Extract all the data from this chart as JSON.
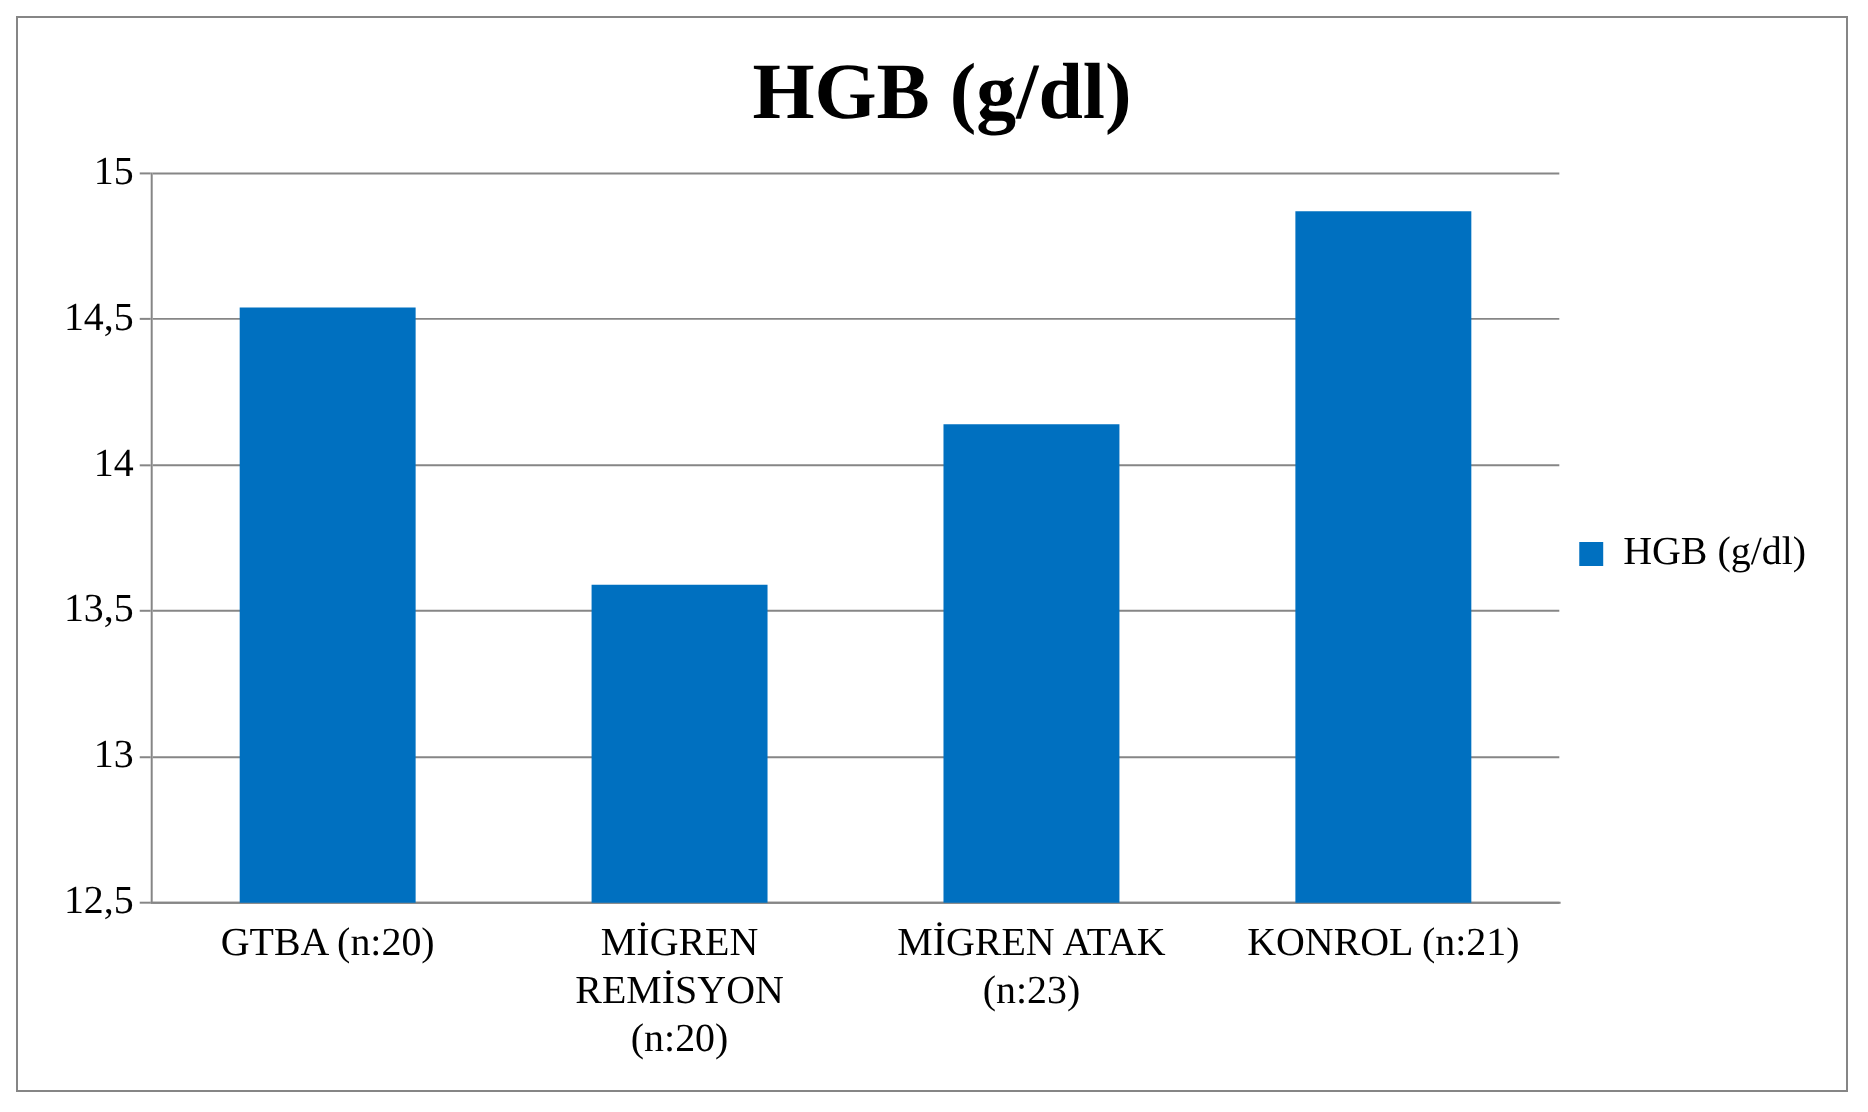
{
  "chart_data": {
    "type": "bar",
    "title": "HGB (g/dl)",
    "categories": [
      "GTBA (n:20)",
      "MİGREN REMİSYON (n:20)",
      "MİGREN ATAK (n:23)",
      "KONROL (n:21)"
    ],
    "series": [
      {
        "name": "HGB (g/dl)",
        "color": "#0070c0",
        "values": [
          14.54,
          13.59,
          14.14,
          14.87
        ]
      }
    ],
    "ylim": [
      12.5,
      15
    ],
    "yticks": [
      {
        "value": 12.5,
        "label": "12,5"
      },
      13,
      {
        "value": 13.5,
        "label": "13,5"
      },
      14,
      {
        "value": 14.5,
        "label": "14,5"
      },
      15
    ],
    "grid": "y",
    "legend": "right"
  }
}
